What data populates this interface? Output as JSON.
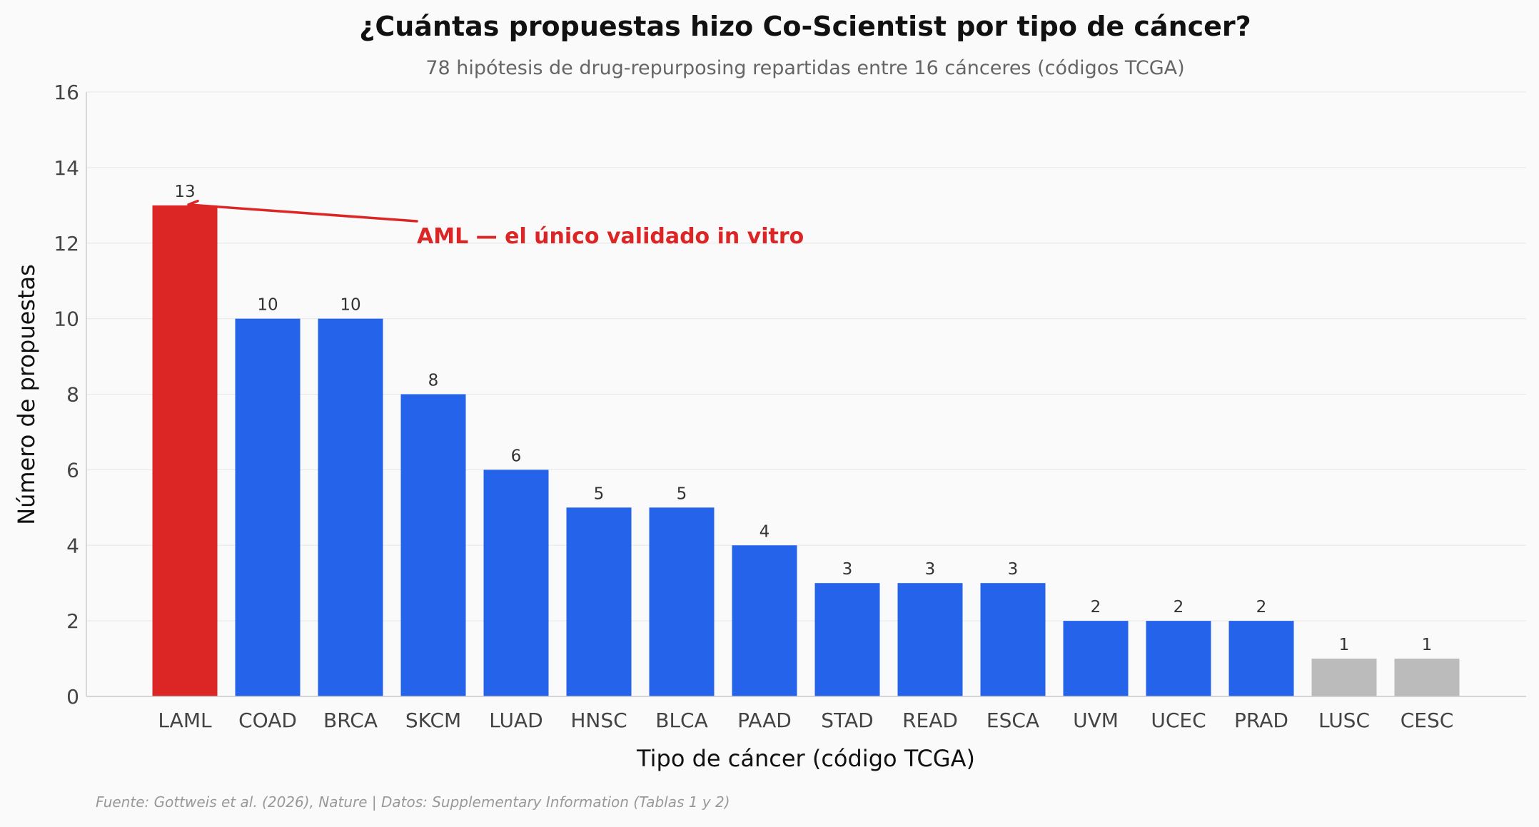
{
  "chart_data": {
    "type": "bar",
    "title": "¿Cuántas propuestas hizo Co-Scientist por tipo de cáncer?",
    "subtitle": "78 hipótesis de drug-repurposing repartidas entre 16 cánceres (códigos TCGA)",
    "xlabel": "Tipo de cáncer (código TCGA)",
    "ylabel": "Número de propuestas",
    "ylim": [
      0,
      16
    ],
    "yticks": [
      0,
      2,
      4,
      6,
      8,
      10,
      12,
      14,
      16
    ],
    "grid": "horizontal",
    "categories": [
      "LAML",
      "COAD",
      "BRCA",
      "SKCM",
      "LUAD",
      "HNSC",
      "BLCA",
      "PAAD",
      "STAD",
      "READ",
      "ESCA",
      "UVM",
      "UCEC",
      "PRAD",
      "LUSC",
      "CESC"
    ],
    "values": [
      13,
      10,
      10,
      8,
      6,
      5,
      5,
      4,
      3,
      3,
      3,
      2,
      2,
      2,
      1,
      1
    ],
    "bar_colors": [
      "#dc2626",
      "#2563eb",
      "#2563eb",
      "#2563eb",
      "#2563eb",
      "#2563eb",
      "#2563eb",
      "#2563eb",
      "#2563eb",
      "#2563eb",
      "#2563eb",
      "#2563eb",
      "#2563eb",
      "#2563eb",
      "#bbbbbb",
      "#bbbbbb"
    ],
    "annotation": {
      "text": "AML — el único validado in vitro",
      "target_category": "LAML",
      "color": "#dc2626"
    },
    "source": "Fuente: Gottweis et al. (2026), Nature | Datos: Supplementary Information (Tablas 1 y 2)"
  }
}
